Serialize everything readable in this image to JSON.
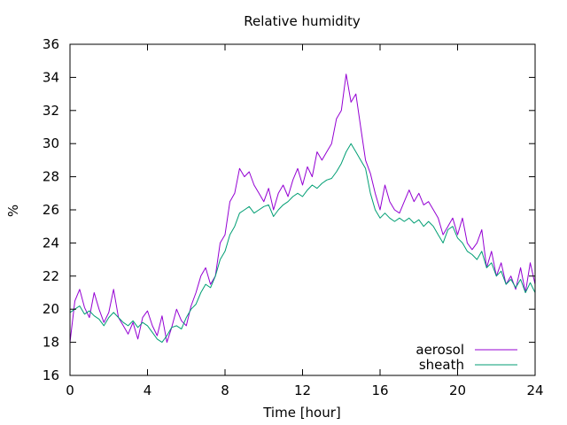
{
  "chart_data": {
    "type": "line",
    "title": "Relative humidity",
    "xlabel": "Time [hour]",
    "ylabel": "%",
    "xlim": [
      0,
      24
    ],
    "ylim": [
      16,
      36
    ],
    "xticks": [
      0,
      4,
      8,
      12,
      16,
      20,
      24
    ],
    "yticks": [
      16,
      18,
      20,
      22,
      24,
      26,
      28,
      30,
      32,
      34,
      36
    ],
    "grid": false,
    "legend_position": "bottom-right",
    "series": [
      {
        "name": "aerosol",
        "color": "#9400d3",
        "x": [
          0,
          0.25,
          0.5,
          0.75,
          1,
          1.25,
          1.5,
          1.75,
          2,
          2.25,
          2.5,
          2.75,
          3,
          3.25,
          3.5,
          3.75,
          4,
          4.25,
          4.5,
          4.75,
          5,
          5.25,
          5.5,
          5.75,
          6,
          6.25,
          6.5,
          6.75,
          7,
          7.25,
          7.5,
          7.75,
          8,
          8.25,
          8.5,
          8.75,
          9,
          9.25,
          9.5,
          9.75,
          10,
          10.25,
          10.5,
          10.75,
          11,
          11.25,
          11.5,
          11.75,
          12,
          12.25,
          12.5,
          12.75,
          13,
          13.25,
          13.5,
          13.75,
          14,
          14.25,
          14.5,
          14.75,
          15,
          15.25,
          15.5,
          15.75,
          16,
          16.25,
          16.5,
          16.75,
          17,
          17.25,
          17.5,
          17.75,
          18,
          18.25,
          18.5,
          18.75,
          19,
          19.25,
          19.5,
          19.75,
          20,
          20.25,
          20.5,
          20.75,
          21,
          21.25,
          21.5,
          21.75,
          22,
          22.25,
          22.5,
          22.75,
          23,
          23.25,
          23.5,
          23.75,
          24
        ],
        "values": [
          18.0,
          20.5,
          21.2,
          20.1,
          19.5,
          21.0,
          20.0,
          19.2,
          19.8,
          21.2,
          19.5,
          19.0,
          18.5,
          19.2,
          18.2,
          19.5,
          19.9,
          19.0,
          18.4,
          19.6,
          18.0,
          18.9,
          20.0,
          19.3,
          19.0,
          20.2,
          21.0,
          22.0,
          22.5,
          21.5,
          22.0,
          24.0,
          24.5,
          26.5,
          27.0,
          28.5,
          28.0,
          28.3,
          27.5,
          27.0,
          26.5,
          27.3,
          26.0,
          27.0,
          27.5,
          26.8,
          27.8,
          28.5,
          27.5,
          28.6,
          28.0,
          29.5,
          29.0,
          29.5,
          30.0,
          31.5,
          32.0,
          34.2,
          32.5,
          33.0,
          31.0,
          29.0,
          28.2,
          27.0,
          26.0,
          27.5,
          26.5,
          26.0,
          25.8,
          26.5,
          27.2,
          26.5,
          27.0,
          26.3,
          26.5,
          26.0,
          25.5,
          24.5,
          25.0,
          25.5,
          24.5,
          25.5,
          24.0,
          23.6,
          24.0,
          24.8,
          22.5,
          23.5,
          22.0,
          22.8,
          21.5,
          22.0,
          21.2,
          22.5,
          21.0,
          22.8,
          21.5
        ]
      },
      {
        "name": "sheath",
        "color": "#009e73",
        "x": [
          0,
          0.25,
          0.5,
          0.75,
          1,
          1.25,
          1.5,
          1.75,
          2,
          2.25,
          2.5,
          2.75,
          3,
          3.25,
          3.5,
          3.75,
          4,
          4.25,
          4.5,
          4.75,
          5,
          5.25,
          5.5,
          5.75,
          6,
          6.25,
          6.5,
          6.75,
          7,
          7.25,
          7.5,
          7.75,
          8,
          8.25,
          8.5,
          8.75,
          9,
          9.25,
          9.5,
          9.75,
          10,
          10.25,
          10.5,
          10.75,
          11,
          11.25,
          11.5,
          11.75,
          12,
          12.25,
          12.5,
          12.75,
          13,
          13.25,
          13.5,
          13.75,
          14,
          14.25,
          14.5,
          14.75,
          15,
          15.25,
          15.5,
          15.75,
          16,
          16.25,
          16.5,
          16.75,
          17,
          17.25,
          17.5,
          17.75,
          18,
          18.25,
          18.5,
          18.75,
          19,
          19.25,
          19.5,
          19.75,
          20,
          20.25,
          20.5,
          20.75,
          21,
          21.25,
          21.5,
          21.75,
          22,
          22.25,
          22.5,
          22.75,
          23,
          23.25,
          23.5,
          23.75,
          24
        ],
        "values": [
          19.8,
          20.0,
          20.2,
          19.7,
          19.9,
          19.6,
          19.4,
          19.0,
          19.5,
          19.8,
          19.5,
          19.2,
          19.0,
          19.3,
          18.9,
          19.2,
          19.0,
          18.6,
          18.2,
          18.0,
          18.4,
          18.9,
          19.0,
          18.8,
          19.5,
          20.0,
          20.3,
          21.0,
          21.5,
          21.3,
          22.0,
          23.0,
          23.5,
          24.5,
          25.0,
          25.8,
          26.0,
          26.2,
          25.8,
          26.0,
          26.2,
          26.3,
          25.6,
          26.0,
          26.3,
          26.5,
          26.8,
          27.0,
          26.8,
          27.2,
          27.5,
          27.3,
          27.6,
          27.8,
          27.9,
          28.3,
          28.8,
          29.5,
          30.0,
          29.5,
          29.0,
          28.5,
          27.0,
          26.0,
          25.5,
          25.8,
          25.5,
          25.3,
          25.5,
          25.3,
          25.5,
          25.2,
          25.4,
          25.0,
          25.3,
          25.0,
          24.5,
          24.0,
          24.8,
          25.0,
          24.3,
          24.0,
          23.5,
          23.3,
          23.0,
          23.5,
          22.5,
          22.8,
          22.0,
          22.3,
          21.5,
          21.8,
          21.3,
          21.8,
          21.0,
          21.6,
          21.0
        ]
      }
    ]
  }
}
